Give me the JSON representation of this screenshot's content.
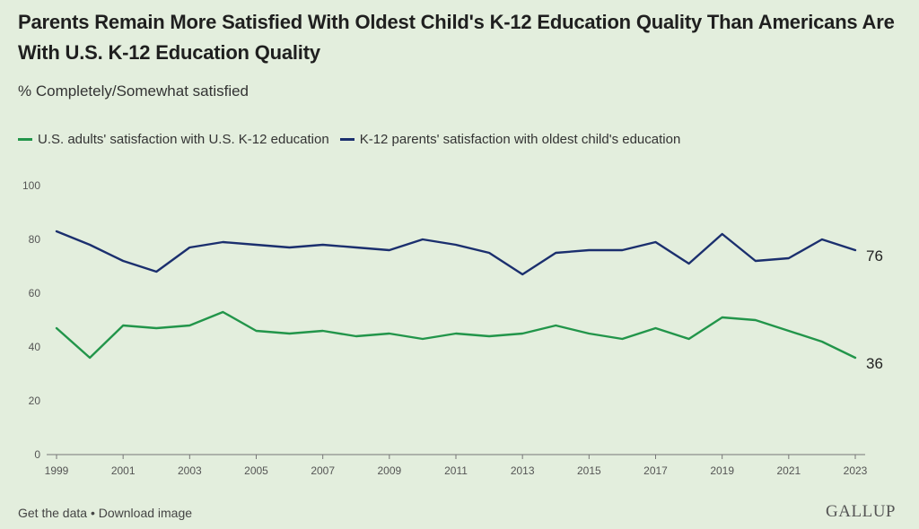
{
  "title": "Parents Remain More Satisfied With Oldest Child's K-12 Education Quality Than Americans Are With U.S. K-12 Education Quality",
  "subtitle": "% Completely/Somewhat satisfied",
  "footer": {
    "get_data": "Get the data",
    "separator": " • ",
    "download": "Download image"
  },
  "logo": "GALLUP",
  "chart_data": {
    "type": "line",
    "x": [
      1999,
      2000,
      2001,
      2002,
      2003,
      2004,
      2005,
      2006,
      2007,
      2008,
      2009,
      2010,
      2011,
      2012,
      2013,
      2014,
      2015,
      2016,
      2017,
      2018,
      2019,
      2020,
      2021,
      2022,
      2023
    ],
    "x_tick_labels": [
      "1999",
      "2001",
      "2003",
      "2005",
      "2007",
      "2009",
      "2011",
      "2013",
      "2015",
      "2017",
      "2019",
      "2021",
      "2023"
    ],
    "y_ticks": [
      0,
      20,
      40,
      60,
      80,
      100
    ],
    "ylim": [
      0,
      100
    ],
    "grid": false,
    "legend_position": "top-left",
    "series": [
      {
        "name": "U.S. adults' satisfaction with U.S. K-12 education",
        "color": "#22954a",
        "values": [
          47,
          36,
          48,
          47,
          48,
          53,
          46,
          45,
          46,
          44,
          45,
          43,
          45,
          44,
          45,
          48,
          45,
          43,
          47,
          43,
          51,
          50,
          46,
          42,
          36
        ],
        "end_label": "36"
      },
      {
        "name": "K-12 parents' satisfaction with oldest child's education",
        "color": "#1b2f6e",
        "values": [
          83,
          78,
          72,
          68,
          77,
          79,
          78,
          77,
          78,
          77,
          76,
          80,
          78,
          75,
          67,
          75,
          76,
          76,
          79,
          71,
          82,
          72,
          73,
          80,
          76
        ],
        "end_label": "76"
      }
    ]
  }
}
